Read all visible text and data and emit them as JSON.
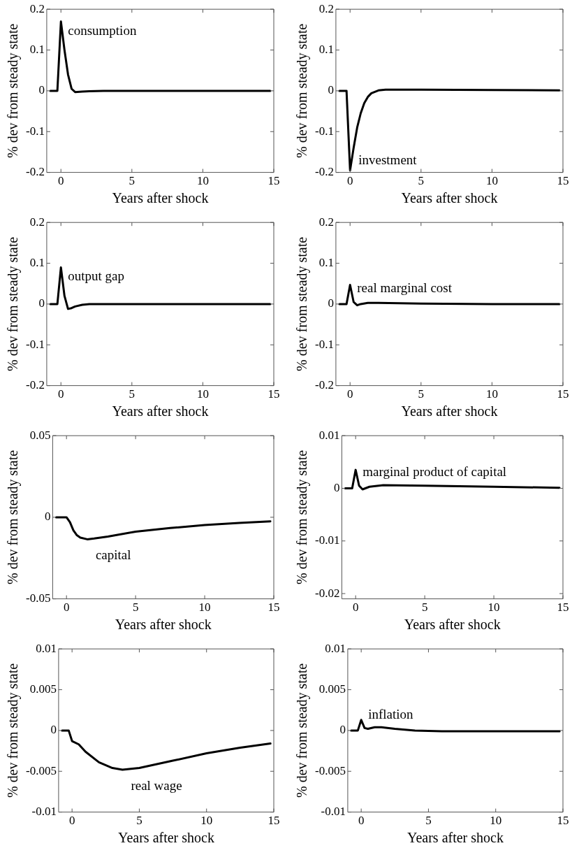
{
  "chart_data": [
    {
      "type": "line",
      "xlabel": "Years after shock",
      "ylabel": "% dev from steady state",
      "xlim": [
        -1,
        15
      ],
      "xticks": [
        0,
        5,
        10,
        15
      ],
      "ylim": [
        -0.2,
        0.2
      ],
      "yticks": [
        -0.2,
        -0.1,
        0,
        0.1,
        0.2
      ],
      "grid": false,
      "marker": "none",
      "line_style": "solid",
      "series": [
        {
          "name": "consumption",
          "color": "#000000",
          "x": [
            -0.75,
            -0.5,
            -0.25,
            0,
            0.25,
            0.5,
            0.75,
            1,
            1.5,
            2,
            3,
            5,
            10,
            14.75
          ],
          "values": [
            0,
            0,
            0,
            0.17,
            0.1,
            0.04,
            0.005,
            -0.003,
            -0.002,
            -0.001,
            0,
            0,
            0,
            0
          ]
        }
      ]
    },
    {
      "type": "line",
      "xlabel": "Years after shock",
      "ylabel": "% dev from steady state",
      "xlim": [
        -1,
        15
      ],
      "xticks": [
        0,
        5,
        10,
        15
      ],
      "ylim": [
        -0.2,
        0.2
      ],
      "yticks": [
        -0.2,
        -0.1,
        0,
        0.1,
        0.2
      ],
      "grid": false,
      "marker": "none",
      "line_style": "solid",
      "series": [
        {
          "name": "investment",
          "color": "#000000",
          "x": [
            -0.75,
            -0.5,
            -0.25,
            0,
            0.25,
            0.5,
            0.75,
            1,
            1.25,
            1.5,
            2,
            2.5,
            5,
            10,
            14.75
          ],
          "values": [
            0,
            0,
            0,
            -0.195,
            -0.14,
            -0.09,
            -0.055,
            -0.03,
            -0.015,
            -0.006,
            0.001,
            0.003,
            0.003,
            0.002,
            0.001
          ]
        }
      ]
    },
    {
      "type": "line",
      "xlabel": "Years after shock",
      "ylabel": "% dev from steady state",
      "xlim": [
        -1,
        15
      ],
      "xticks": [
        0,
        5,
        10,
        15
      ],
      "ylim": [
        -0.2,
        0.2
      ],
      "yticks": [
        -0.2,
        -0.1,
        0,
        0.1,
        0.2
      ],
      "grid": false,
      "marker": "none",
      "line_style": "solid",
      "series": [
        {
          "name": "output gap",
          "color": "#000000",
          "x": [
            -0.75,
            -0.5,
            -0.25,
            0,
            0.25,
            0.5,
            0.75,
            1,
            1.5,
            2,
            5,
            10,
            14.75
          ],
          "values": [
            0,
            0,
            0,
            0.09,
            0.02,
            -0.012,
            -0.01,
            -0.006,
            -0.002,
            0,
            0,
            0,
            0
          ]
        }
      ]
    },
    {
      "type": "line",
      "xlabel": "Years after shock",
      "ylabel": "% dev from steady state",
      "xlim": [
        -1,
        15
      ],
      "xticks": [
        0,
        5,
        10,
        15
      ],
      "ylim": [
        -0.2,
        0.2
      ],
      "yticks": [
        -0.2,
        -0.1,
        0,
        0.1,
        0.2
      ],
      "grid": false,
      "marker": "none",
      "line_style": "solid",
      "series": [
        {
          "name": "real marginal cost",
          "color": "#000000",
          "x": [
            -0.75,
            -0.5,
            -0.25,
            0,
            0.25,
            0.5,
            0.75,
            1.25,
            2,
            5,
            10,
            14.75
          ],
          "values": [
            0,
            0,
            0,
            0.047,
            0.005,
            -0.003,
            0,
            0.003,
            0.003,
            0.001,
            0,
            0
          ]
        }
      ]
    },
    {
      "type": "line",
      "xlabel": "Years after shock",
      "ylabel": "% dev from steady state",
      "xlim": [
        -1,
        15
      ],
      "xticks": [
        0,
        5,
        10,
        15
      ],
      "ylim": [
        -0.05,
        0.05
      ],
      "yticks": [
        -0.05,
        0,
        0.05
      ],
      "grid": false,
      "marker": "none",
      "line_style": "solid",
      "series": [
        {
          "name": "capital",
          "color": "#000000",
          "x": [
            -0.75,
            -0.5,
            -0.25,
            0,
            0.25,
            0.5,
            0.75,
            1,
            1.5,
            2,
            3,
            5,
            7.5,
            10,
            12.5,
            14.75
          ],
          "values": [
            0,
            0,
            0,
            0,
            -0.003,
            -0.008,
            -0.011,
            -0.0125,
            -0.0135,
            -0.013,
            -0.0118,
            -0.0088,
            -0.0066,
            -0.0048,
            -0.0035,
            -0.0025
          ]
        }
      ]
    },
    {
      "type": "line",
      "xlabel": "Years after shock",
      "ylabel": "% dev from steady state",
      "xlim": [
        -1,
        15
      ],
      "xticks": [
        0,
        5,
        10,
        15
      ],
      "ylim": [
        -0.021,
        0.01
      ],
      "yticks": [
        -0.02,
        -0.01,
        0,
        0.01
      ],
      "grid": false,
      "marker": "none",
      "line_style": "solid",
      "series": [
        {
          "name": "marginal product of capital",
          "color": "#000000",
          "x": [
            -0.75,
            -0.5,
            -0.25,
            0,
            0.25,
            0.5,
            1,
            2,
            5,
            10,
            14.75
          ],
          "values": [
            0,
            0,
            0,
            0.0035,
            0.0005,
            -0.0002,
            0.0003,
            0.0006,
            0.0005,
            0.0003,
            0.0001
          ]
        }
      ]
    },
    {
      "type": "line",
      "xlabel": "Years after shock",
      "ylabel": "% dev from steady state",
      "xlim": [
        -1,
        15
      ],
      "xticks": [
        0,
        5,
        10,
        15
      ],
      "ylim": [
        -0.01,
        0.01
      ],
      "yticks": [
        -0.01,
        -0.005,
        0,
        0.005,
        0.01
      ],
      "grid": false,
      "marker": "none",
      "line_style": "solid",
      "series": [
        {
          "name": "real wage",
          "color": "#000000",
          "x": [
            -0.75,
            -0.5,
            -0.25,
            0,
            0.5,
            1,
            2,
            3,
            3.75,
            5,
            7.5,
            10,
            12.5,
            14.75
          ],
          "values": [
            0,
            0,
            0,
            -0.0013,
            -0.0017,
            -0.0026,
            -0.0039,
            -0.0046,
            -0.0048,
            -0.0046,
            -0.0037,
            -0.0028,
            -0.0021,
            -0.0016
          ]
        }
      ]
    },
    {
      "type": "line",
      "xlabel": "Years after shock",
      "ylabel": "% dev from steady state",
      "xlim": [
        -1,
        15
      ],
      "xticks": [
        0,
        5,
        10,
        15
      ],
      "ylim": [
        -0.01,
        0.01
      ],
      "yticks": [
        -0.01,
        -0.005,
        0,
        0.005,
        0.01
      ],
      "grid": false,
      "marker": "none",
      "line_style": "solid",
      "series": [
        {
          "name": "inflation",
          "color": "#000000",
          "x": [
            -0.75,
            -0.5,
            -0.25,
            0,
            0.25,
            0.5,
            1,
            1.5,
            2.5,
            4,
            6,
            10,
            14.75
          ],
          "values": [
            0,
            0,
            0,
            0.0013,
            0.0003,
            0.0002,
            0.0004,
            0.0004,
            0.0002,
            0,
            -0.0001,
            -0.0001,
            -0.0001
          ]
        }
      ]
    }
  ]
}
